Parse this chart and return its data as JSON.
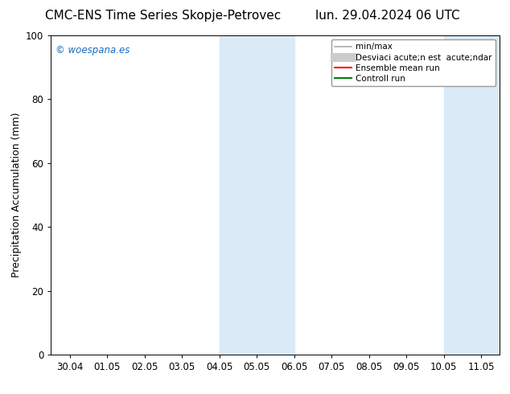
{
  "title_left": "CMC-ENS Time Series Skopje-Petrovec",
  "title_right": "lun. 29.04.2024 06 UTC",
  "ylabel": "Precipitation Accumulation (mm)",
  "ylim": [
    0,
    100
  ],
  "xtick_labels": [
    "30.04",
    "01.05",
    "02.05",
    "03.05",
    "04.05",
    "05.05",
    "06.05",
    "07.05",
    "08.05",
    "09.05",
    "10.05",
    "11.05"
  ],
  "xtick_positions": [
    0,
    1,
    2,
    3,
    4,
    5,
    6,
    7,
    8,
    9,
    10,
    11
  ],
  "xlim": [
    -0.5,
    11.5
  ],
  "shaded_regions": [
    {
      "x_start": 4.0,
      "x_end": 6.0,
      "color": "#daeaf7"
    },
    {
      "x_start": 10.0,
      "x_end": 11.5,
      "color": "#daeaf7"
    }
  ],
  "legend_labels": [
    "min/max",
    "Desviaci acute;n est  acute;ndar",
    "Ensemble mean run",
    "Controll run"
  ],
  "legend_colors": [
    "#aaaaaa",
    "#cccccc",
    "#ff0000",
    "#008000"
  ],
  "legend_linewidths": [
    1.2,
    8,
    1.5,
    1.5
  ],
  "watermark_text": "© woespana.es",
  "watermark_color": "#1a6bbf",
  "background_color": "#ffffff",
  "title_fontsize": 11,
  "tick_fontsize": 8.5,
  "ylabel_fontsize": 9,
  "legend_fontsize": 7.5
}
